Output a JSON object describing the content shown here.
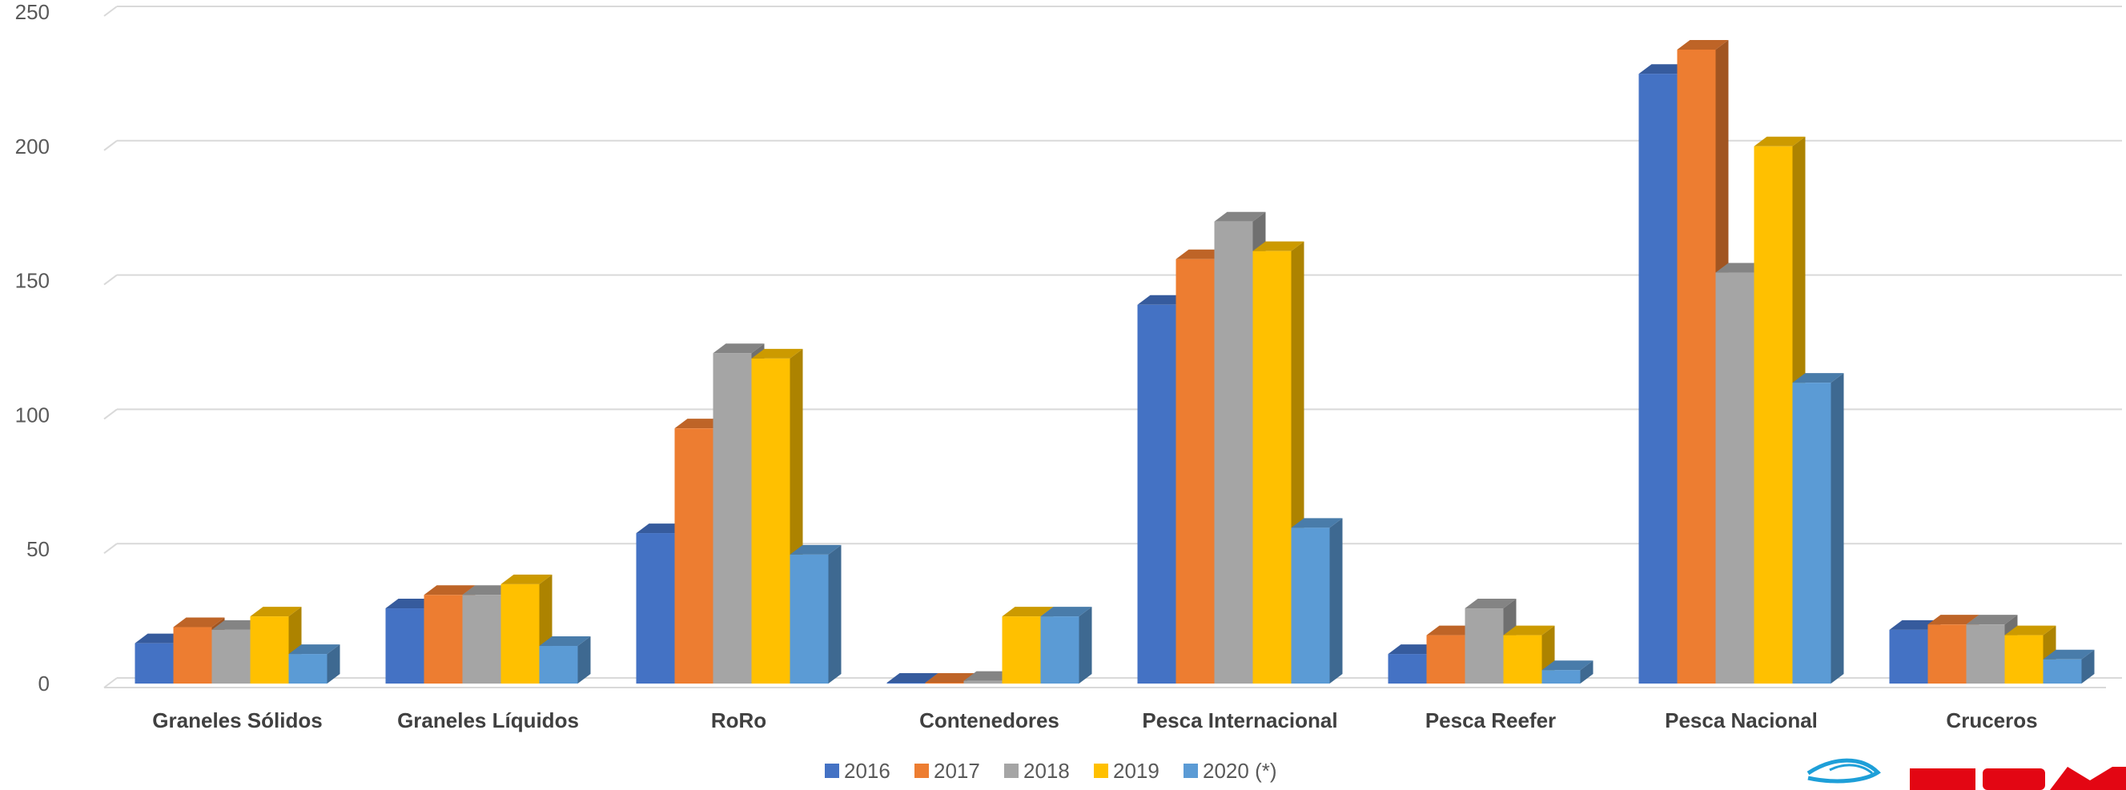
{
  "chart_data": {
    "type": "bar",
    "categories": [
      "Graneles Sólidos",
      "Graneles Líquidos",
      "RoRo",
      "Contenedores",
      "Pesca Internacional",
      "Pesca Reefer",
      "Pesca Nacional",
      "Cruceros"
    ],
    "series": [
      {
        "name": "2016",
        "color": "#4472C4",
        "values": [
          15,
          28,
          56,
          0,
          141,
          11,
          227,
          20
        ]
      },
      {
        "name": "2017",
        "color": "#ED7D31",
        "values": [
          21,
          33,
          95,
          0,
          158,
          18,
          236,
          22
        ]
      },
      {
        "name": "2018",
        "color": "#A5A5A5",
        "values": [
          20,
          33,
          123,
          1,
          172,
          28,
          153,
          22
        ]
      },
      {
        "name": "2019",
        "color": "#FFC000",
        "values": [
          25,
          37,
          121,
          25,
          161,
          18,
          200,
          18
        ]
      },
      {
        "name": "2020 (*)",
        "color": "#5B9BD5",
        "values": [
          11,
          14,
          48,
          25,
          58,
          5,
          112,
          9
        ]
      }
    ],
    "yticks": [
      0,
      50,
      100,
      150,
      200,
      250
    ],
    "ylim": [
      0,
      250
    ],
    "grid": true,
    "legend_position": "bottom-center",
    "style": "3d-clustered-column"
  },
  "logo": {
    "text": "TPM",
    "color": "#E30613",
    "swoosh_color": "#1E9FD8"
  }
}
